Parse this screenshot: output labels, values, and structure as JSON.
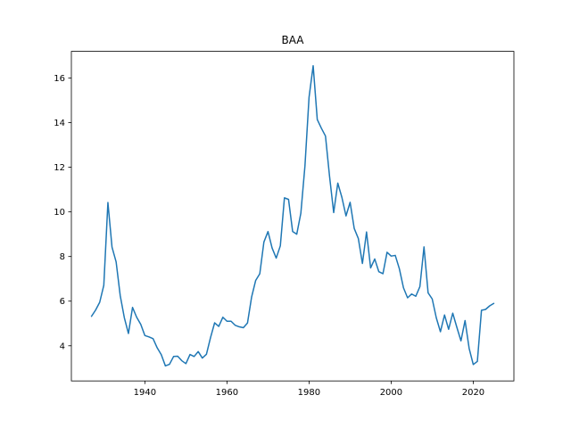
{
  "chart_data": {
    "type": "line",
    "title": "BAA",
    "xlabel": "",
    "ylabel": "",
    "xlim": [
      1922.1,
      2029.9
    ],
    "ylim": [
      2.425,
      17.195
    ],
    "xticks": [
      1940,
      1960,
      1980,
      2000,
      2020
    ],
    "yticks": [
      4,
      6,
      8,
      10,
      12,
      14,
      16
    ],
    "grid": false,
    "color": "#1f77b4",
    "series": [
      {
        "x": [
          1927,
          1928,
          1929,
          1930,
          1931,
          1932,
          1933,
          1934,
          1935,
          1936,
          1937,
          1938,
          1939,
          1940,
          1941,
          1942,
          1943,
          1944,
          1945,
          1946,
          1947,
          1948,
          1949,
          1950,
          1951,
          1952,
          1953,
          1954,
          1955,
          1956,
          1957,
          1958,
          1959,
          1960,
          1961,
          1962,
          1963,
          1964,
          1965,
          1966,
          1967,
          1968,
          1969,
          1970,
          1971,
          1972,
          1973,
          1974,
          1975,
          1976,
          1977,
          1978,
          1979,
          1980,
          1981,
          1982,
          1983,
          1984,
          1985,
          1986,
          1987,
          1988,
          1989,
          1990,
          1991,
          1992,
          1993,
          1994,
          1995,
          1996,
          1997,
          1998,
          1999,
          2000,
          2001,
          2002,
          2003,
          2004,
          2005,
          2006,
          2007,
          2008,
          2009,
          2010,
          2011,
          2012,
          2013,
          2014,
          2015,
          2016,
          2017,
          2018,
          2019,
          2020,
          2021,
          2022,
          2023,
          2024,
          2025
        ],
        "values": [
          5.32,
          5.6,
          5.95,
          6.71,
          10.42,
          8.42,
          7.76,
          6.25,
          5.26,
          4.55,
          5.72,
          5.28,
          4.96,
          4.46,
          4.4,
          4.32,
          3.91,
          3.6,
          3.1,
          3.17,
          3.52,
          3.53,
          3.33,
          3.2,
          3.61,
          3.52,
          3.74,
          3.45,
          3.62,
          4.37,
          5.03,
          4.87,
          5.28,
          5.1,
          5.1,
          4.92,
          4.85,
          4.81,
          5.02,
          6.18,
          6.93,
          7.23,
          8.65,
          9.12,
          8.38,
          7.93,
          8.48,
          10.63,
          10.56,
          9.12,
          9.0,
          9.94,
          12.06,
          15.14,
          16.55,
          14.14,
          13.75,
          13.4,
          11.58,
          9.97,
          11.29,
          10.65,
          9.82,
          10.43,
          9.26,
          8.81,
          7.69,
          9.1,
          7.49,
          7.89,
          7.32,
          7.23,
          8.19,
          8.02,
          8.05,
          7.45,
          6.6,
          6.15,
          6.32,
          6.22,
          6.65,
          8.43,
          6.37,
          6.1,
          5.25,
          4.63,
          5.38,
          4.74,
          5.46,
          4.83,
          4.22,
          5.13,
          3.88,
          3.16,
          3.3,
          5.59,
          5.63,
          5.79,
          5.9
        ]
      }
    ]
  }
}
